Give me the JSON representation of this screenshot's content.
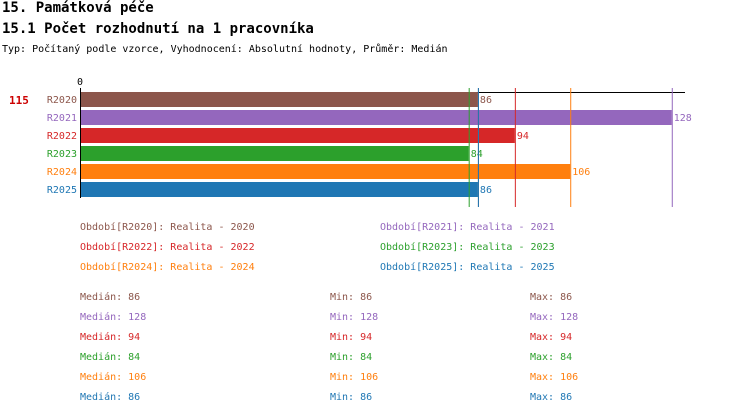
{
  "heading": "15. Památková péče",
  "subheading": "15.1 Počet rozhodnutí na 1 pracovníka",
  "info": "Typ: Počítaný podle vzorce, Vyhodnocení: Absolutní hodnoty, Průměr: Medián",
  "highlight_value": "115",
  "axis_zero_label": "0",
  "chart_data": {
    "type": "bar",
    "orientation": "horizontal",
    "categories": [
      "R2020",
      "R2021",
      "R2022",
      "R2023",
      "R2024",
      "R2025"
    ],
    "values": [
      86,
      128,
      94,
      84,
      106,
      86
    ],
    "value_labels": [
      "86",
      "128",
      "94",
      "84",
      "106",
      "86"
    ],
    "colors": [
      "#8c564b",
      "#9467bd",
      "#d62728",
      "#2ca02c",
      "#ff7f0e",
      "#1f77b4"
    ],
    "xlim": [
      0,
      130
    ],
    "reference_lines": [
      86,
      128,
      94,
      84,
      106,
      86
    ]
  },
  "legend": [
    {
      "text": "Období[R2020]: Realita - 2020",
      "color": "#8c564b"
    },
    {
      "text": "Období[R2021]: Realita - 2021",
      "color": "#9467bd"
    },
    {
      "text": "Období[R2022]: Realita - 2022",
      "color": "#d62728"
    },
    {
      "text": "Období[R2023]: Realita - 2023",
      "color": "#2ca02c"
    },
    {
      "text": "Období[R2024]: Realita - 2024",
      "color": "#ff7f0e"
    },
    {
      "text": "Období[R2025]: Realita - 2025",
      "color": "#1f77b4"
    }
  ],
  "stats": [
    {
      "median": "Medián: 86",
      "min": "Min: 86",
      "max": "Max: 86",
      "color": "#8c564b"
    },
    {
      "median": "Medián: 128",
      "min": "Min: 128",
      "max": "Max: 128",
      "color": "#9467bd"
    },
    {
      "median": "Medián: 94",
      "min": "Min: 94",
      "max": "Max: 94",
      "color": "#d62728"
    },
    {
      "median": "Medián: 84",
      "min": "Min: 84",
      "max": "Max: 84",
      "color": "#2ca02c"
    },
    {
      "median": "Medián: 106",
      "min": "Min: 106",
      "max": "Max: 106",
      "color": "#ff7f0e"
    },
    {
      "median": "Medián: 86",
      "min": "Min: 86",
      "max": "Max: 86",
      "color": "#1f77b4"
    }
  ]
}
